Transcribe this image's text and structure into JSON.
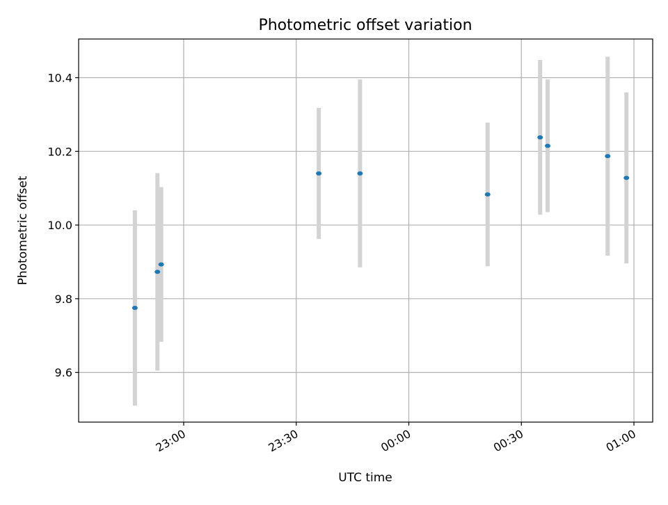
{
  "chart_data": {
    "type": "scatter",
    "title": "Photometric offset variation",
    "xlabel": "UTC time",
    "ylabel": "Photometric offset",
    "x_tick_labels": [
      "23:00",
      "23:30",
      "00:00",
      "00:30",
      "01:00"
    ],
    "x_tick_values": [
      "23:00",
      "23:30",
      "00:00",
      "00:30",
      "01:00"
    ],
    "y_tick_labels": [
      "9.6",
      "9.8",
      "10.0",
      "10.2",
      "10.4"
    ],
    "y_tick_values": [
      9.6,
      9.8,
      10.0,
      10.2,
      10.4
    ],
    "xlim": [
      "22:32",
      "01:05"
    ],
    "ylim": [
      9.465,
      10.505
    ],
    "grid": true,
    "colors": {
      "marker": "#1f77b4",
      "errorbar": "#d3d3d3",
      "grid": "#b0b0b0"
    },
    "points": [
      {
        "time": "22:47",
        "y": 9.775,
        "err": 0.265
      },
      {
        "time": "22:53",
        "y": 9.873,
        "err": 0.268
      },
      {
        "time": "22:54",
        "y": 9.893,
        "err": 0.21
      },
      {
        "time": "23:36",
        "y": 10.14,
        "err": 0.178
      },
      {
        "time": "23:47",
        "y": 10.14,
        "err": 0.255
      },
      {
        "time": "00:21",
        "y": 10.083,
        "err": 0.195
      },
      {
        "time": "00:35",
        "y": 10.238,
        "err": 0.21
      },
      {
        "time": "00:37",
        "y": 10.215,
        "err": 0.18
      },
      {
        "time": "00:53",
        "y": 10.187,
        "err": 0.27
      },
      {
        "time": "00:58",
        "y": 10.128,
        "err": 0.232
      }
    ]
  }
}
